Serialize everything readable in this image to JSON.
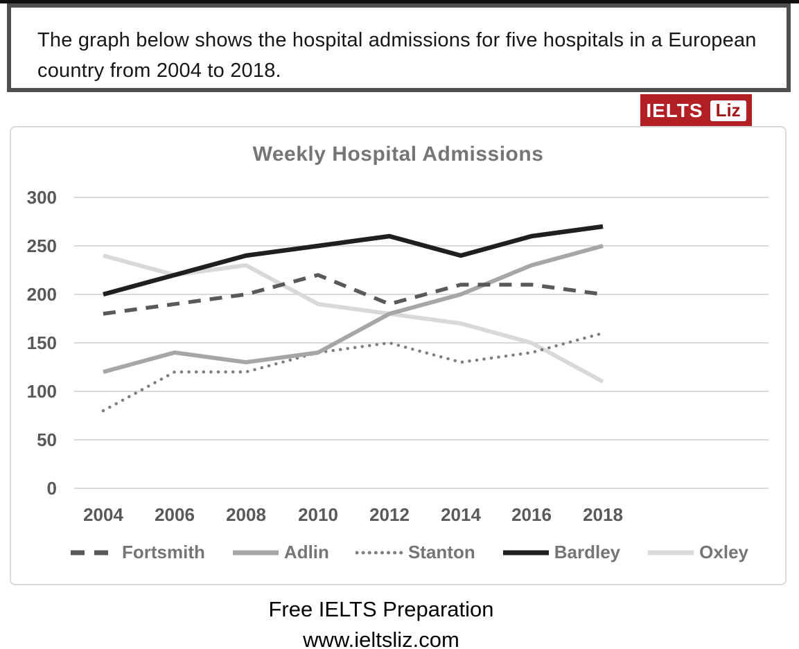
{
  "header": {
    "task_text": "The graph below shows the hospital admissions for five hospitals in a European country from 2004 to 2018."
  },
  "logo": {
    "brand": "IELTS",
    "brand_suffix": "Liz",
    "bg_color": "#b21f24",
    "suffix_text_color": "#a0181c"
  },
  "chart_data": {
    "type": "line",
    "title": "Weekly Hospital Admissions",
    "x": [
      2004,
      2006,
      2008,
      2010,
      2012,
      2014,
      2016,
      2018
    ],
    "xlabel": "",
    "ylabel": "",
    "ylim": [
      0,
      300
    ],
    "yticks": [
      300,
      250,
      200,
      150,
      100,
      50,
      0
    ],
    "grid": true,
    "legend_position": "bottom",
    "colors": {
      "title": "#757575",
      "axis_labels": "#595959",
      "gridline": "#d9d9d9",
      "legend_text": "#757575"
    },
    "series": [
      {
        "name": "Fortsmith",
        "style": "dashed",
        "color": "#595959",
        "values": [
          180,
          190,
          200,
          220,
          190,
          210,
          210,
          200
        ]
      },
      {
        "name": "Adlin",
        "style": "solid",
        "color": "#a6a6a6",
        "values": [
          120,
          140,
          130,
          140,
          180,
          200,
          230,
          250
        ]
      },
      {
        "name": "Stanton",
        "style": "dotted",
        "color": "#7f7f7f",
        "values": [
          80,
          120,
          120,
          140,
          150,
          130,
          140,
          160
        ]
      },
      {
        "name": "Bardley",
        "style": "solid",
        "color": "#1f1f1f",
        "values": [
          200,
          220,
          240,
          250,
          260,
          240,
          260,
          270
        ]
      },
      {
        "name": "Oxley",
        "style": "solid",
        "color": "#d9d9d9",
        "values": [
          240,
          220,
          230,
          190,
          180,
          170,
          150,
          110
        ]
      }
    ]
  },
  "footer": {
    "line1": "Free IELTS Preparation",
    "line2": "www.ieltsliz.com"
  }
}
